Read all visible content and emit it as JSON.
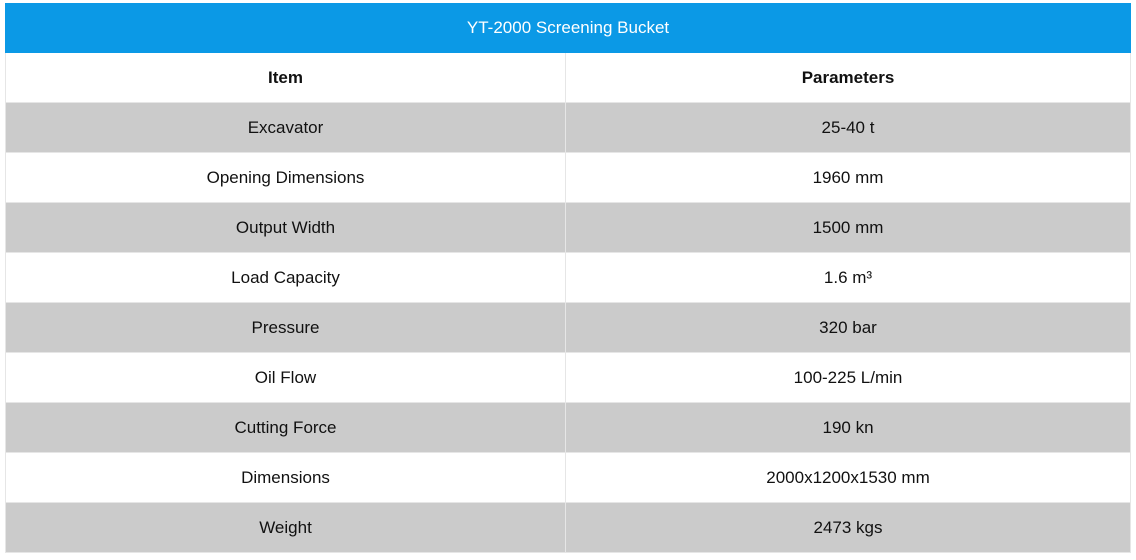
{
  "table": {
    "title": "YT-2000 Screening Bucket",
    "headers": [
      "Item",
      "Parameters"
    ],
    "rows": [
      {
        "item": "Excavator",
        "value": "25-40 t"
      },
      {
        "item": "Opening Dimensions",
        "value": "1960 mm"
      },
      {
        "item": "Output Width",
        "value": "1500 mm"
      },
      {
        "item": "Load Capacity",
        "value": "1.6 m³"
      },
      {
        "item": "Pressure",
        "value": "320 bar"
      },
      {
        "item": "Oil Flow",
        "value": "100-225 L/min"
      },
      {
        "item": "Cutting Force",
        "value": "190 kn"
      },
      {
        "item": "Dimensions",
        "value": "2000x1200x1530 mm"
      },
      {
        "item": "Weight",
        "value": "2473 kgs"
      }
    ]
  },
  "colors": {
    "title_bg": "#0b99e6",
    "stripe_gray": "#cbcbcb",
    "stripe_white": "#ffffff"
  }
}
